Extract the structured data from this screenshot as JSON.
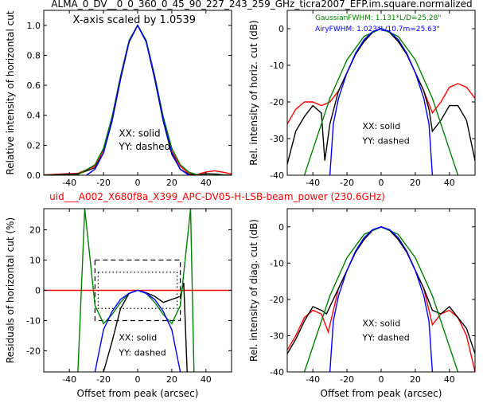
{
  "figure": {
    "title": "ALMA_0_DV__0_0_360_0_45_90_227_243_259_GHz_ticra2007_EFP.im.square.normalized",
    "subtitle": "uid___A002_X680f8a_X399_APC-DV05-H-LSB-beam_power (230.6GHz)",
    "colors": {
      "subtitle": "#ff0000",
      "xx_yy_measured": "#000000",
      "red_curve": "#ff0000",
      "gaussian": "#008000",
      "airy": "#0000ff"
    }
  },
  "chart_data": [
    {
      "type": "line",
      "ylabel": "Relative intensity of horizontal cut",
      "xlabel": "",
      "xlim": [
        -55,
        55
      ],
      "ylim": [
        0,
        1.1
      ],
      "xticks": [
        -40,
        -20,
        0,
        20,
        40
      ],
      "yticks": [
        0.0,
        0.2,
        0.4,
        0.6,
        0.8,
        1.0
      ],
      "annotations": [
        "X-axis scaled by 1.0539",
        "XX: solid",
        "YY: dashed"
      ],
      "series": [
        {
          "color": "red",
          "x": [
            -55,
            -45,
            -35,
            -25,
            -20,
            -15,
            -10,
            -5,
            0,
            5,
            10,
            15,
            20,
            25,
            30,
            35,
            40,
            45,
            50,
            55
          ],
          "y": [
            0.002,
            0.008,
            0.012,
            0.06,
            0.17,
            0.38,
            0.66,
            0.9,
            1.0,
            0.9,
            0.66,
            0.38,
            0.16,
            0.06,
            0.01,
            0.005,
            0.022,
            0.03,
            0.02,
            0.008
          ]
        },
        {
          "color": "black",
          "x": [
            -55,
            -45,
            -35,
            -25,
            -20,
            -15,
            -10,
            -5,
            0,
            5,
            10,
            15,
            20,
            25,
            30,
            35,
            40,
            45,
            50,
            55
          ],
          "y": [
            0.0,
            0.005,
            0.008,
            0.05,
            0.15,
            0.36,
            0.64,
            0.89,
            1.0,
            0.89,
            0.64,
            0.36,
            0.14,
            0.04,
            0.005,
            0.002,
            0.01,
            0.008,
            0.003,
            0.0
          ]
        },
        {
          "color": "green",
          "x": [
            -55,
            -45,
            -35,
            -25,
            -20,
            -15,
            -10,
            -5,
            0,
            5,
            10,
            15,
            20,
            25,
            30,
            35,
            40,
            45,
            50,
            55
          ],
          "y": [
            0.0,
            0.0,
            0.003,
            0.07,
            0.18,
            0.39,
            0.66,
            0.9,
            1.0,
            0.9,
            0.66,
            0.39,
            0.18,
            0.07,
            0.02,
            0.003,
            0.0,
            0.0,
            0.0,
            0.0
          ]
        },
        {
          "color": "blue",
          "x": [
            -30,
            -25,
            -20,
            -15,
            -10,
            -5,
            0,
            5,
            10,
            15,
            20,
            25,
            30
          ],
          "y": [
            0.0,
            0.04,
            0.15,
            0.37,
            0.65,
            0.89,
            1.0,
            0.89,
            0.65,
            0.37,
            0.15,
            0.04,
            0.0
          ]
        }
      ]
    },
    {
      "type": "line",
      "ylabel": "Rel. intensity of horiz. cut (dB)",
      "xlabel": "",
      "xlim": [
        -55,
        55
      ],
      "ylim": [
        -40,
        5
      ],
      "xticks": [
        -40,
        -20,
        0,
        20,
        40
      ],
      "yticks": [
        0,
        -10,
        -20,
        -30,
        -40
      ],
      "legend": [
        "GaussianFWHM: 1.131*L/D=25.28\"",
        "AiryFWHM: 1.023*L/10.7m=25.63\""
      ],
      "annotations": [
        "XX: solid",
        "YY: dashed"
      ],
      "series": [
        {
          "color": "red",
          "x": [
            -55,
            -50,
            -45,
            -40,
            -35,
            -30,
            -25,
            -20,
            -15,
            -10,
            -5,
            0,
            5,
            10,
            15,
            20,
            25,
            30,
            35,
            40,
            45,
            50,
            55
          ],
          "y": [
            -26,
            -22,
            -20,
            -20,
            -21,
            -20,
            -17,
            -12,
            -7,
            -3.5,
            -1,
            0,
            -1,
            -3.5,
            -7,
            -12,
            -17,
            -23,
            -20,
            -16,
            -15,
            -16,
            -19
          ]
        },
        {
          "color": "black",
          "x": [
            -55,
            -50,
            -45,
            -40,
            -35,
            -33,
            -30,
            -25,
            -20,
            -15,
            -10,
            -5,
            0,
            5,
            10,
            15,
            20,
            25,
            28,
            30,
            35,
            40,
            45,
            50,
            55
          ],
          "y": [
            -37,
            -28,
            -24,
            -21,
            -23,
            -36,
            -26,
            -17,
            -12,
            -7,
            -3.5,
            -1,
            0,
            -1,
            -3.5,
            -7,
            -12,
            -17,
            -22,
            -28,
            -25,
            -21,
            -21,
            -25,
            -36
          ]
        },
        {
          "color": "green",
          "x": [
            -45,
            -40,
            -30,
            -20,
            -10,
            0,
            10,
            20,
            30,
            40,
            45
          ],
          "y": [
            -40,
            -33,
            -19,
            -8.5,
            -2.1,
            0,
            -2.1,
            -8.5,
            -19,
            -33,
            -40
          ]
        },
        {
          "color": "blue",
          "x": [
            -30,
            -28,
            -25,
            -20,
            -15,
            -10,
            -5,
            0,
            5,
            10,
            15,
            20,
            25,
            28,
            30
          ],
          "y": [
            -40,
            -26,
            -19,
            -12,
            -6.7,
            -3,
            -0.8,
            0,
            -0.8,
            -3,
            -6.7,
            -12,
            -19,
            -26,
            -40
          ]
        }
      ]
    },
    {
      "type": "line",
      "ylabel": "Residuals of horizontal cut (%)",
      "xlabel": "Offset from peak (arcsec)",
      "xlim": [
        -55,
        55
      ],
      "ylim": [
        -27,
        27
      ],
      "xticks": [
        -40,
        -20,
        0,
        20,
        40
      ],
      "yticks": [
        20,
        10,
        0,
        -10,
        -20
      ],
      "annotations": [
        "XX: solid",
        "YY: dashed"
      ],
      "series": [
        {
          "color": "red",
          "x": [
            -55,
            55
          ],
          "y": [
            0,
            0
          ]
        },
        {
          "color": "black",
          "x": [
            -20,
            -15,
            -10,
            -5,
            0,
            5,
            10,
            15,
            20,
            25,
            27,
            29
          ],
          "y": [
            -27,
            -17,
            -6,
            -1,
            0,
            -0.8,
            -2,
            -4,
            -3,
            -2,
            2.5,
            -27
          ]
        },
        {
          "color": "green",
          "x": [
            -35,
            -31,
            -25,
            -20,
            -15,
            -10,
            -5,
            0,
            5,
            10,
            15,
            20,
            25,
            31,
            33
          ],
          "y": [
            -27,
            27,
            -5,
            -11,
            -8,
            -4,
            -1,
            0,
            -1,
            -4,
            -8,
            -11,
            -5,
            27,
            -27
          ]
        },
        {
          "color": "blue",
          "x": [
            -25,
            -20,
            -15,
            -10,
            -5,
            0,
            5,
            10,
            15,
            20,
            25
          ],
          "y": [
            -27,
            -13,
            -7,
            -3,
            -1,
            0,
            -1,
            -3,
            -7,
            -13,
            -27
          ]
        }
      ]
    },
    {
      "type": "line",
      "ylabel": "Rel. intensity of diag. cut (dB)",
      "xlabel": "Offset from peak (arcsec)",
      "xlim": [
        -55,
        55
      ],
      "ylim": [
        -40,
        5
      ],
      "xticks": [
        -40,
        -20,
        0,
        20,
        40
      ],
      "yticks": [
        0,
        -10,
        -20,
        -30,
        -40
      ],
      "annotations": [
        "XX: solid",
        "YY: dashed"
      ],
      "series": [
        {
          "color": "red",
          "x": [
            -55,
            -50,
            -45,
            -40,
            -35,
            -31,
            -25,
            -20,
            -15,
            -10,
            -5,
            0,
            5,
            10,
            15,
            20,
            25,
            30,
            35,
            40,
            45,
            50,
            55
          ],
          "y": [
            -34,
            -30,
            -25,
            -23,
            -24,
            -29,
            -17,
            -12,
            -7,
            -3.5,
            -1,
            0,
            -1,
            -3.5,
            -7,
            -12,
            -17,
            -27,
            -24,
            -23,
            -25,
            -30,
            -40
          ]
        },
        {
          "color": "black",
          "x": [
            -55,
            -50,
            -45,
            -40,
            -35,
            -32,
            -25,
            -20,
            -15,
            -10,
            -5,
            0,
            5,
            10,
            15,
            20,
            25,
            30,
            35,
            40,
            45,
            50,
            55
          ],
          "y": [
            -35,
            -31,
            -26,
            -22,
            -23,
            -24,
            -17,
            -12,
            -7,
            -3.5,
            -1,
            0,
            -1,
            -3.5,
            -7,
            -12,
            -17,
            -23,
            -24,
            -22,
            -25,
            -28,
            -35
          ]
        },
        {
          "color": "green",
          "x": [
            -45,
            -40,
            -30,
            -20,
            -10,
            0,
            10,
            20,
            30,
            40,
            45
          ],
          "y": [
            -40,
            -33,
            -19,
            -8.5,
            -2.1,
            0,
            -2.1,
            -8.5,
            -19,
            -33,
            -40
          ]
        },
        {
          "color": "blue",
          "x": [
            -30,
            -28,
            -25,
            -20,
            -15,
            -10,
            -5,
            0,
            5,
            10,
            15,
            20,
            25,
            28,
            30
          ],
          "y": [
            -40,
            -26,
            -19,
            -12,
            -6.7,
            -3,
            -0.8,
            0,
            -0.8,
            -3,
            -6.7,
            -12,
            -19,
            -26,
            -40
          ]
        }
      ]
    }
  ]
}
